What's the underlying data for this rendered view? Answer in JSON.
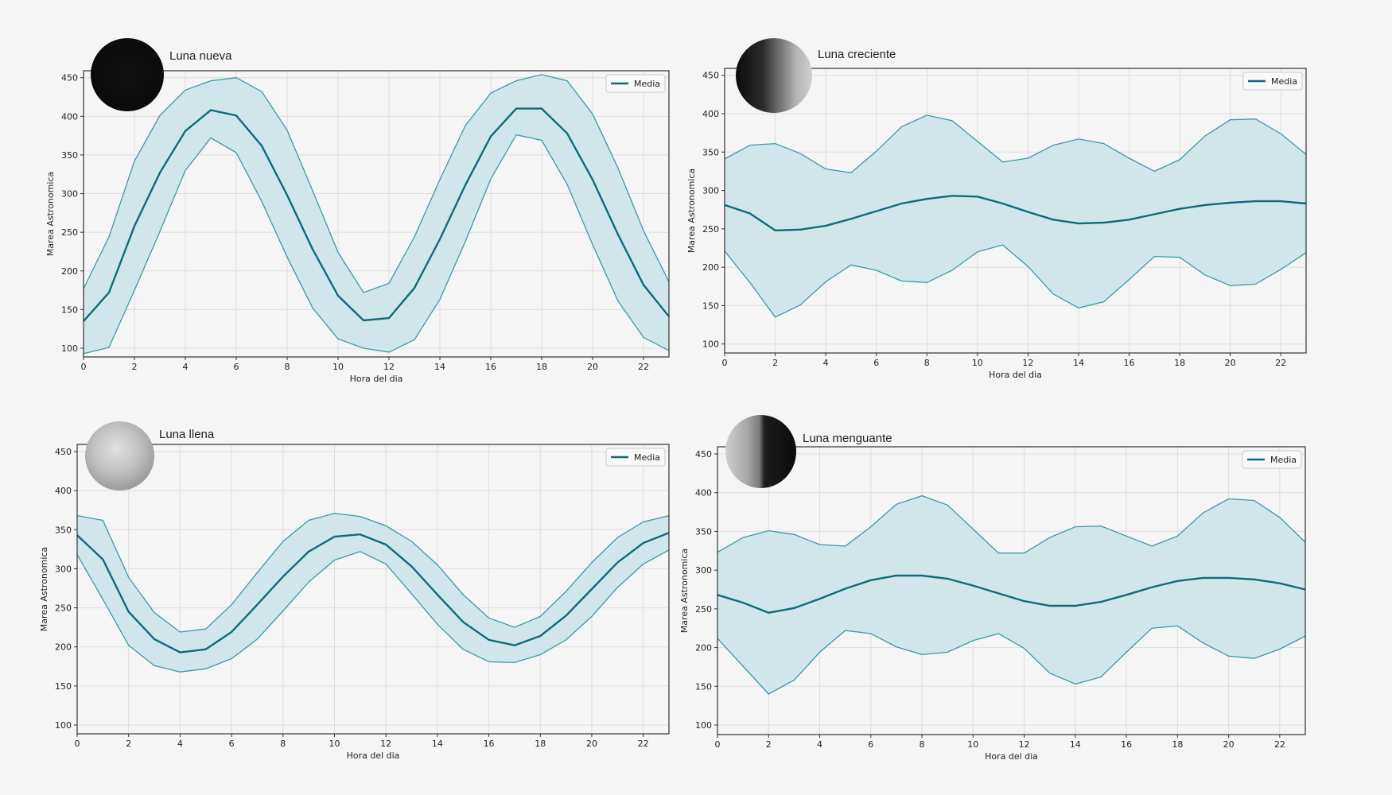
{
  "colors": {
    "background": "#f5f5f5",
    "mean_line": "#0e6b7c",
    "band_edge": "#3a9aa8",
    "band_fill": "#cfe5ea",
    "grid": "#dddddd",
    "axis": "#333333"
  },
  "chart_data": [
    {
      "type": "line",
      "title": "Luna nueva",
      "moon_phase_icon": "new-moon-icon",
      "xlabel": "Hora del dia",
      "ylabel": "Marea Astronomica",
      "xlim": [
        0,
        23
      ],
      "ylim": [
        88,
        460
      ],
      "xticks": [
        0,
        2,
        4,
        6,
        8,
        10,
        12,
        14,
        16,
        18,
        20,
        22
      ],
      "yticks": [
        100,
        150,
        200,
        250,
        300,
        350,
        400,
        450
      ],
      "grid": true,
      "legend": {
        "position": "upper right",
        "entries": [
          "Media"
        ]
      },
      "x": [
        0,
        1,
        2,
        3,
        4,
        5,
        6,
        7,
        8,
        9,
        10,
        11,
        12,
        13,
        14,
        15,
        16,
        17,
        18,
        19,
        20,
        21,
        22,
        23
      ],
      "series": [
        {
          "name": "Media",
          "values": [
            135,
            172,
            258,
            327,
            381,
            408,
            401,
            362,
            298,
            228,
            168,
            136,
            139,
            178,
            241,
            311,
            374,
            410,
            410,
            378,
            318,
            247,
            182,
            141
          ]
        },
        {
          "name": "Upper band",
          "values": [
            177,
            244,
            342,
            401,
            434,
            446,
            450,
            432,
            382,
            304,
            224,
            172,
            184,
            244,
            318,
            388,
            430,
            446,
            454,
            446,
            403,
            333,
            252,
            186
          ]
        },
        {
          "name": "Lower band",
          "values": [
            93,
            101,
            175,
            251,
            330,
            372,
            353,
            290,
            218,
            152,
            112,
            100,
            95,
            111,
            163,
            238,
            319,
            376,
            369,
            312,
            234,
            161,
            114,
            97
          ]
        }
      ]
    },
    {
      "type": "line",
      "title": "Luna creciente",
      "moon_phase_icon": "first-quarter-moon-icon",
      "xlabel": "Hora del dia",
      "ylabel": "Marea Astronomica",
      "xlim": [
        0,
        23
      ],
      "ylim": [
        88,
        460
      ],
      "xticks": [
        0,
        2,
        4,
        6,
        8,
        10,
        12,
        14,
        16,
        18,
        20,
        22
      ],
      "yticks": [
        100,
        150,
        200,
        250,
        300,
        350,
        400,
        450
      ],
      "grid": true,
      "legend": {
        "position": "upper right",
        "entries": [
          "Media"
        ]
      },
      "x": [
        0,
        1,
        2,
        3,
        4,
        5,
        6,
        7,
        8,
        9,
        10,
        11,
        12,
        13,
        14,
        15,
        16,
        17,
        18,
        19,
        20,
        21,
        22,
        23
      ],
      "series": [
        {
          "name": "Media",
          "values": [
            281,
            270,
            248,
            249,
            254,
            263,
            273,
            283,
            289,
            293,
            292,
            283,
            272,
            262,
            257,
            258,
            262,
            269,
            276,
            281,
            284,
            286,
            286,
            283
          ]
        },
        {
          "name": "Upper band",
          "values": [
            341,
            359,
            361,
            348,
            328,
            323,
            351,
            383,
            398,
            391,
            364,
            337,
            342,
            359,
            367,
            361,
            342,
            325,
            340,
            371,
            392,
            393,
            374,
            347
          ]
        },
        {
          "name": "Lower band",
          "values": [
            221,
            180,
            135,
            151,
            181,
            203,
            196,
            182,
            180,
            196,
            220,
            229,
            201,
            165,
            147,
            155,
            184,
            214,
            213,
            190,
            176,
            178,
            197,
            219
          ]
        }
      ]
    },
    {
      "type": "line",
      "title": "Luna llena",
      "moon_phase_icon": "full-moon-icon",
      "xlabel": "Hora del dia",
      "ylabel": "Marea Astronomica",
      "xlim": [
        0,
        23
      ],
      "ylim": [
        88,
        460
      ],
      "xticks": [
        0,
        2,
        4,
        6,
        8,
        10,
        12,
        14,
        16,
        18,
        20,
        22
      ],
      "yticks": [
        100,
        150,
        200,
        250,
        300,
        350,
        400,
        450
      ],
      "grid": true,
      "legend": {
        "position": "upper right",
        "entries": [
          "Media"
        ]
      },
      "x": [
        0,
        1,
        2,
        3,
        4,
        5,
        6,
        7,
        8,
        9,
        10,
        11,
        12,
        13,
        14,
        15,
        16,
        17,
        18,
        19,
        20,
        21,
        22,
        23
      ],
      "series": [
        {
          "name": "Media",
          "values": [
            343,
            312,
            245,
            210,
            193,
            197,
            219,
            254,
            290,
            322,
            341,
            344,
            331,
            303,
            267,
            232,
            209,
            202,
            214,
            240,
            274,
            308,
            333,
            346
          ]
        },
        {
          "name": "Upper band",
          "values": [
            368,
            362,
            289,
            244,
            219,
            223,
            254,
            295,
            335,
            362,
            371,
            367,
            355,
            335,
            305,
            267,
            237,
            225,
            239,
            271,
            308,
            340,
            360,
            368
          ]
        },
        {
          "name": "Lower band",
          "values": [
            318,
            261,
            202,
            176,
            168,
            172,
            185,
            210,
            246,
            283,
            311,
            322,
            306,
            268,
            229,
            197,
            181,
            180,
            190,
            209,
            239,
            276,
            306,
            324
          ]
        }
      ]
    },
    {
      "type": "line",
      "title": "Luna menguante",
      "moon_phase_icon": "last-quarter-moon-icon",
      "xlabel": "Hora del dia",
      "ylabel": "Marea Astronomica",
      "xlim": [
        0,
        23
      ],
      "ylim": [
        88,
        460
      ],
      "xticks": [
        0,
        2,
        4,
        6,
        8,
        10,
        12,
        14,
        16,
        18,
        20,
        22
      ],
      "yticks": [
        100,
        150,
        200,
        250,
        300,
        350,
        400,
        450
      ],
      "grid": true,
      "legend": {
        "position": "upper right",
        "entries": [
          "Media"
        ]
      },
      "x": [
        0,
        1,
        2,
        3,
        4,
        5,
        6,
        7,
        8,
        9,
        10,
        11,
        12,
        13,
        14,
        15,
        16,
        17,
        18,
        19,
        20,
        21,
        22,
        23
      ],
      "series": [
        {
          "name": "Media",
          "values": [
            268,
            258,
            245,
            251,
            263,
            276,
            287,
            293,
            293,
            289,
            280,
            270,
            260,
            254,
            254,
            259,
            268,
            278,
            286,
            290,
            290,
            288,
            283,
            275
          ]
        },
        {
          "name": "Upper band",
          "values": [
            323,
            342,
            351,
            346,
            333,
            331,
            356,
            385,
            396,
            384,
            353,
            322,
            322,
            342,
            356,
            357,
            344,
            331,
            344,
            374,
            392,
            390,
            368,
            336
          ]
        },
        {
          "name": "Lower band",
          "values": [
            212,
            176,
            140,
            158,
            194,
            222,
            218,
            201,
            191,
            194,
            209,
            218,
            199,
            167,
            153,
            162,
            194,
            225,
            228,
            206,
            189,
            186,
            198,
            215
          ]
        }
      ]
    }
  ]
}
